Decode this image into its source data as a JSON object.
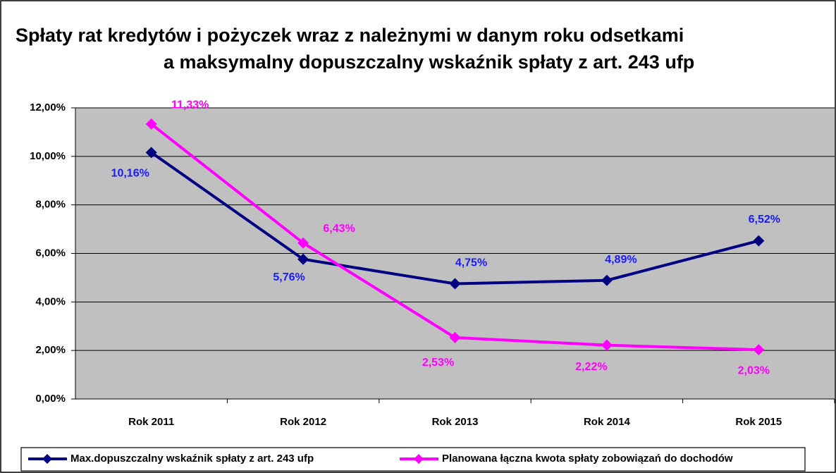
{
  "chart_data": {
    "type": "line",
    "title_lines": [
      "Spłaty rat kredytów i pożyczek wraz z należnymi w danym roku odsetkami",
      "a maksymalny dopuszczalny wskaźnik spłaty z art. 243 ufp"
    ],
    "categories": [
      "Rok 2011",
      "Rok 2012",
      "Rok 2013",
      "Rok 2014",
      "Rok 2015"
    ],
    "series": [
      {
        "name": "Max.dopuszczalny wskaźnik spłaty z art. 243 ufp",
        "color": "#000080",
        "label_color": "#1a1aff",
        "values": [
          10.16,
          5.76,
          4.75,
          4.89,
          6.52
        ],
        "value_labels": [
          "10,16%",
          "5,76%",
          "4,75%",
          "4,89%",
          "6,52%"
        ]
      },
      {
        "name": "Planowana łączna kwota spłaty zobowiązań do dochodów",
        "color": "#ff00ff",
        "label_color": "#ff00ff",
        "values": [
          11.33,
          6.43,
          2.53,
          2.22,
          2.03
        ],
        "value_labels": [
          "11,33%",
          "6,43%",
          "2,53%",
          "2,22%",
          "2,03%"
        ]
      }
    ],
    "ylim": [
      0,
      12
    ],
    "yticks": [
      {
        "value": 0,
        "label": "0,00%"
      },
      {
        "value": 2,
        "label": "2,00%"
      },
      {
        "value": 4,
        "label": "4,00%"
      },
      {
        "value": 6,
        "label": "6,00%"
      },
      {
        "value": 8,
        "label": "8,00%"
      },
      {
        "value": 10,
        "label": "10,00%"
      },
      {
        "value": 12,
        "label": "12,00%"
      }
    ],
    "plot_background": "#c0c0c0"
  }
}
